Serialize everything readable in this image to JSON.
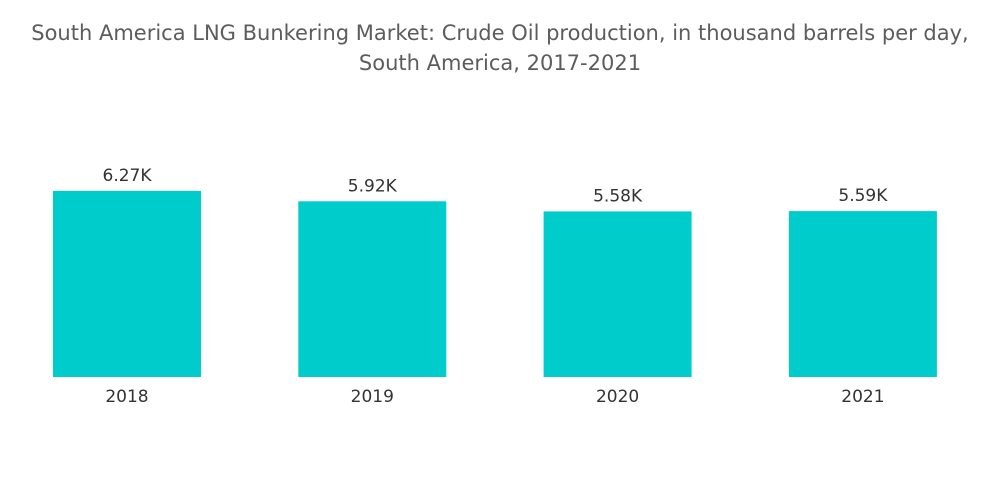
{
  "chart_data": {
    "type": "bar",
    "title": "South America LNG Bunkering Market: Crude Oil production, in thousand barrels per day, South America, 2017-2021",
    "xlabel": "",
    "ylabel": "",
    "categories": [
      "2018",
      "2019",
      "2020",
      "2021"
    ],
    "values": [
      6270,
      5920,
      5580,
      5590
    ],
    "data_labels": [
      "6.27K",
      "5.92K",
      "5.58K",
      "5.59K"
    ],
    "ylim": [
      0,
      6300
    ],
    "grid": false,
    "legend": "none",
    "bar_color": "#00CCCC"
  }
}
